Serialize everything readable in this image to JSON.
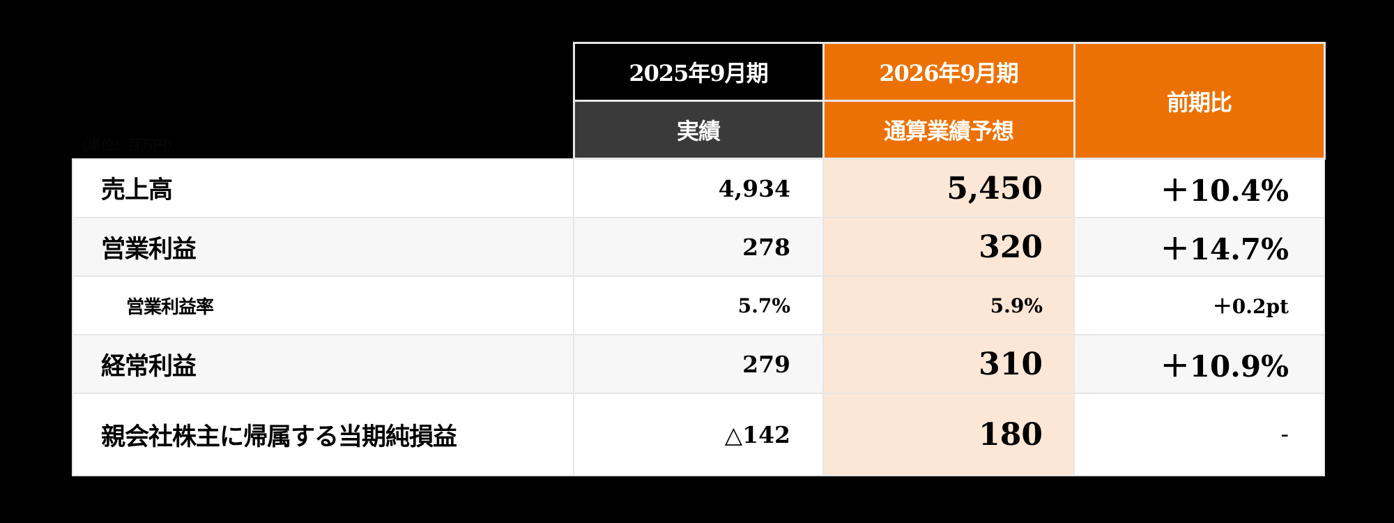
{
  "unit_note": "（単位：百万円）",
  "colors": {
    "background": "#000000",
    "header_prev_period": "#000000",
    "header_prev_sub": "#3a3a3a",
    "accent_orange": "#ec7104",
    "forecast_cell": "#fce7d6",
    "row_alt": "#f7f7f7",
    "border": "#e6e6e6"
  },
  "header": {
    "prev_period": "2025年9月期",
    "prev_sub": "実績",
    "fcst_period": "2026年9月期",
    "fcst_sub": "通算業績予想",
    "yoy": "前期比"
  },
  "rows": [
    {
      "label": "売上高",
      "prev": "4,934",
      "fcst": "5,450",
      "yoy": "＋10.4%"
    },
    {
      "label": "営業利益",
      "prev": "278",
      "fcst": "320",
      "yoy": "＋14.7%"
    },
    {
      "label": "営業利益率",
      "prev": "5.7%",
      "fcst": "5.9%",
      "yoy": "＋0.2pt"
    },
    {
      "label": "経常利益",
      "prev": "279",
      "fcst": "310",
      "yoy": "＋10.9%"
    },
    {
      "label": "親会社株主に帰属する当期純損益",
      "prev": "△142",
      "fcst": "180",
      "yoy": "-"
    }
  ]
}
